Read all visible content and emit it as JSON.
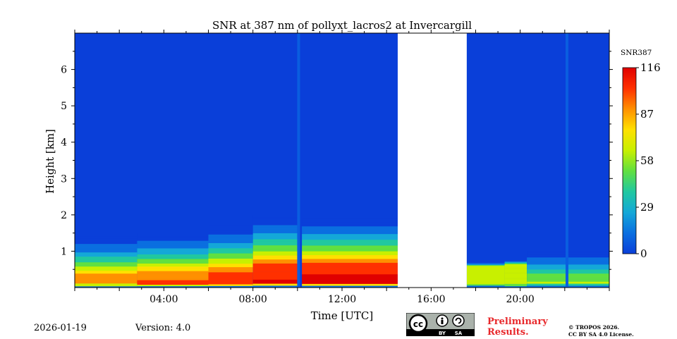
{
  "chart_data": {
    "type": "heatmap",
    "title": "SNR at 387 nm of pollyxt_lacros2 at Invercargill",
    "xlabel": "Time [UTC]",
    "ylabel": "Height [km]",
    "xlim_hours": [
      0,
      24
    ],
    "ylim_km": [
      0,
      7
    ],
    "x_ticks": [
      {
        "hour": 4,
        "label": "04:00"
      },
      {
        "hour": 8,
        "label": "08:00"
      },
      {
        "hour": 12,
        "label": "12:00"
      },
      {
        "hour": 16,
        "label": "16:00"
      },
      {
        "hour": 20,
        "label": "20:00"
      }
    ],
    "y_ticks": [
      {
        "km": 1,
        "label": "1"
      },
      {
        "km": 2,
        "label": "2"
      },
      {
        "km": 3,
        "label": "3"
      },
      {
        "km": 4,
        "label": "4"
      },
      {
        "km": 5,
        "label": "5"
      },
      {
        "km": 6,
        "label": "6"
      }
    ],
    "colorbar": {
      "label": "SNR387",
      "min": 0,
      "max": 116,
      "ticks": [
        {
          "value": 0,
          "label": "0"
        },
        {
          "value": 29,
          "label": "29"
        },
        {
          "value": 58,
          "label": "58"
        },
        {
          "value": 87,
          "label": "87"
        },
        {
          "value": 116,
          "label": "116"
        }
      ],
      "colormap": [
        "#0a3fd9",
        "#0a6fe0",
        "#14a8d8",
        "#20c8a0",
        "#60e040",
        "#c8f000",
        "#ffe000",
        "#ff9000",
        "#ff3000",
        "#e00000"
      ]
    },
    "no_data_gaps_hours": [
      [
        14.5,
        17.6
      ]
    ],
    "profile_drops_hours": [
      10.05,
      22.1
    ],
    "snr_regions": [
      {
        "start_h": 0.0,
        "end_h": 2.8,
        "peak_snr": 95,
        "high_top_km": 0.4,
        "decay_top_km": 1.4
      },
      {
        "start_h": 2.8,
        "end_h": 6.0,
        "peak_snr": 100,
        "high_top_km": 0.45,
        "decay_top_km": 1.5
      },
      {
        "start_h": 6.0,
        "end_h": 8.0,
        "peak_snr": 106,
        "high_top_km": 0.52,
        "decay_top_km": 1.7
      },
      {
        "start_h": 8.0,
        "end_h": 10.0,
        "peak_snr": 112,
        "high_top_km": 0.65,
        "decay_top_km": 2.0
      },
      {
        "start_h": 10.2,
        "end_h": 14.5,
        "peak_snr": 116,
        "high_top_km": 0.68,
        "decay_top_km": 1.9
      },
      {
        "start_h": 17.6,
        "end_h": 19.3,
        "peak_snr": 70,
        "high_top_km": 0.6,
        "decay_top_km": 0.7
      },
      {
        "start_h": 19.3,
        "end_h": 20.3,
        "peak_snr": 68,
        "high_top_km": 0.65,
        "decay_top_km": 0.75
      },
      {
        "start_h": 20.3,
        "end_h": 24.0,
        "peak_snr": 60,
        "high_top_km": 0.35,
        "decay_top_km": 1.0
      }
    ]
  },
  "footer": {
    "date": "2026-01-19",
    "version": "Version: 4.0",
    "preliminary_line1": "Preliminary",
    "preliminary_line2": "Results.",
    "copyright_line1": "© TROPOS 2026.",
    "copyright_line2": "CC BY SA 4.0 License.",
    "badge_by": "BY",
    "badge_sa": "SA",
    "badge_cc": "cc"
  }
}
